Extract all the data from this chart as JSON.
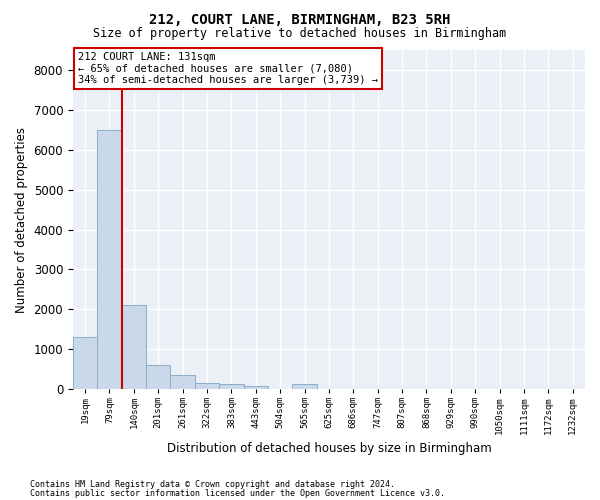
{
  "title": "212, COURT LANE, BIRMINGHAM, B23 5RH",
  "subtitle": "Size of property relative to detached houses in Birmingham",
  "xlabel": "Distribution of detached houses by size in Birmingham",
  "ylabel": "Number of detached properties",
  "footer_line1": "Contains HM Land Registry data © Crown copyright and database right 2024.",
  "footer_line2": "Contains public sector information licensed under the Open Government Licence v3.0.",
  "property_label": "212 COURT LANE: 131sqm",
  "annotation_line1": "← 65% of detached houses are smaller (7,080)",
  "annotation_line2": "34% of semi-detached houses are larger (3,739) →",
  "bar_labels": [
    "19sqm",
    "79sqm",
    "140sqm",
    "201sqm",
    "261sqm",
    "322sqm",
    "383sqm",
    "443sqm",
    "504sqm",
    "565sqm",
    "625sqm",
    "686sqm",
    "747sqm",
    "807sqm",
    "868sqm",
    "929sqm",
    "990sqm",
    "1050sqm",
    "1111sqm",
    "1172sqm",
    "1232sqm"
  ],
  "bar_values": [
    1300,
    6500,
    2100,
    600,
    350,
    150,
    120,
    80,
    0,
    120,
    0,
    0,
    0,
    0,
    0,
    0,
    0,
    0,
    0,
    0,
    0
  ],
  "property_bar_index": 2,
  "bar_color": "#c9d9ea",
  "bar_edge_color": "#8aafc8",
  "vline_color": "#cc0000",
  "annotation_box_edgecolor": "#cc0000",
  "background_color": "#eaf0f6",
  "grid_color": "#ffffff",
  "ylim": [
    0,
    8500
  ],
  "yticks": [
    0,
    1000,
    2000,
    3000,
    4000,
    5000,
    6000,
    7000,
    8000
  ]
}
